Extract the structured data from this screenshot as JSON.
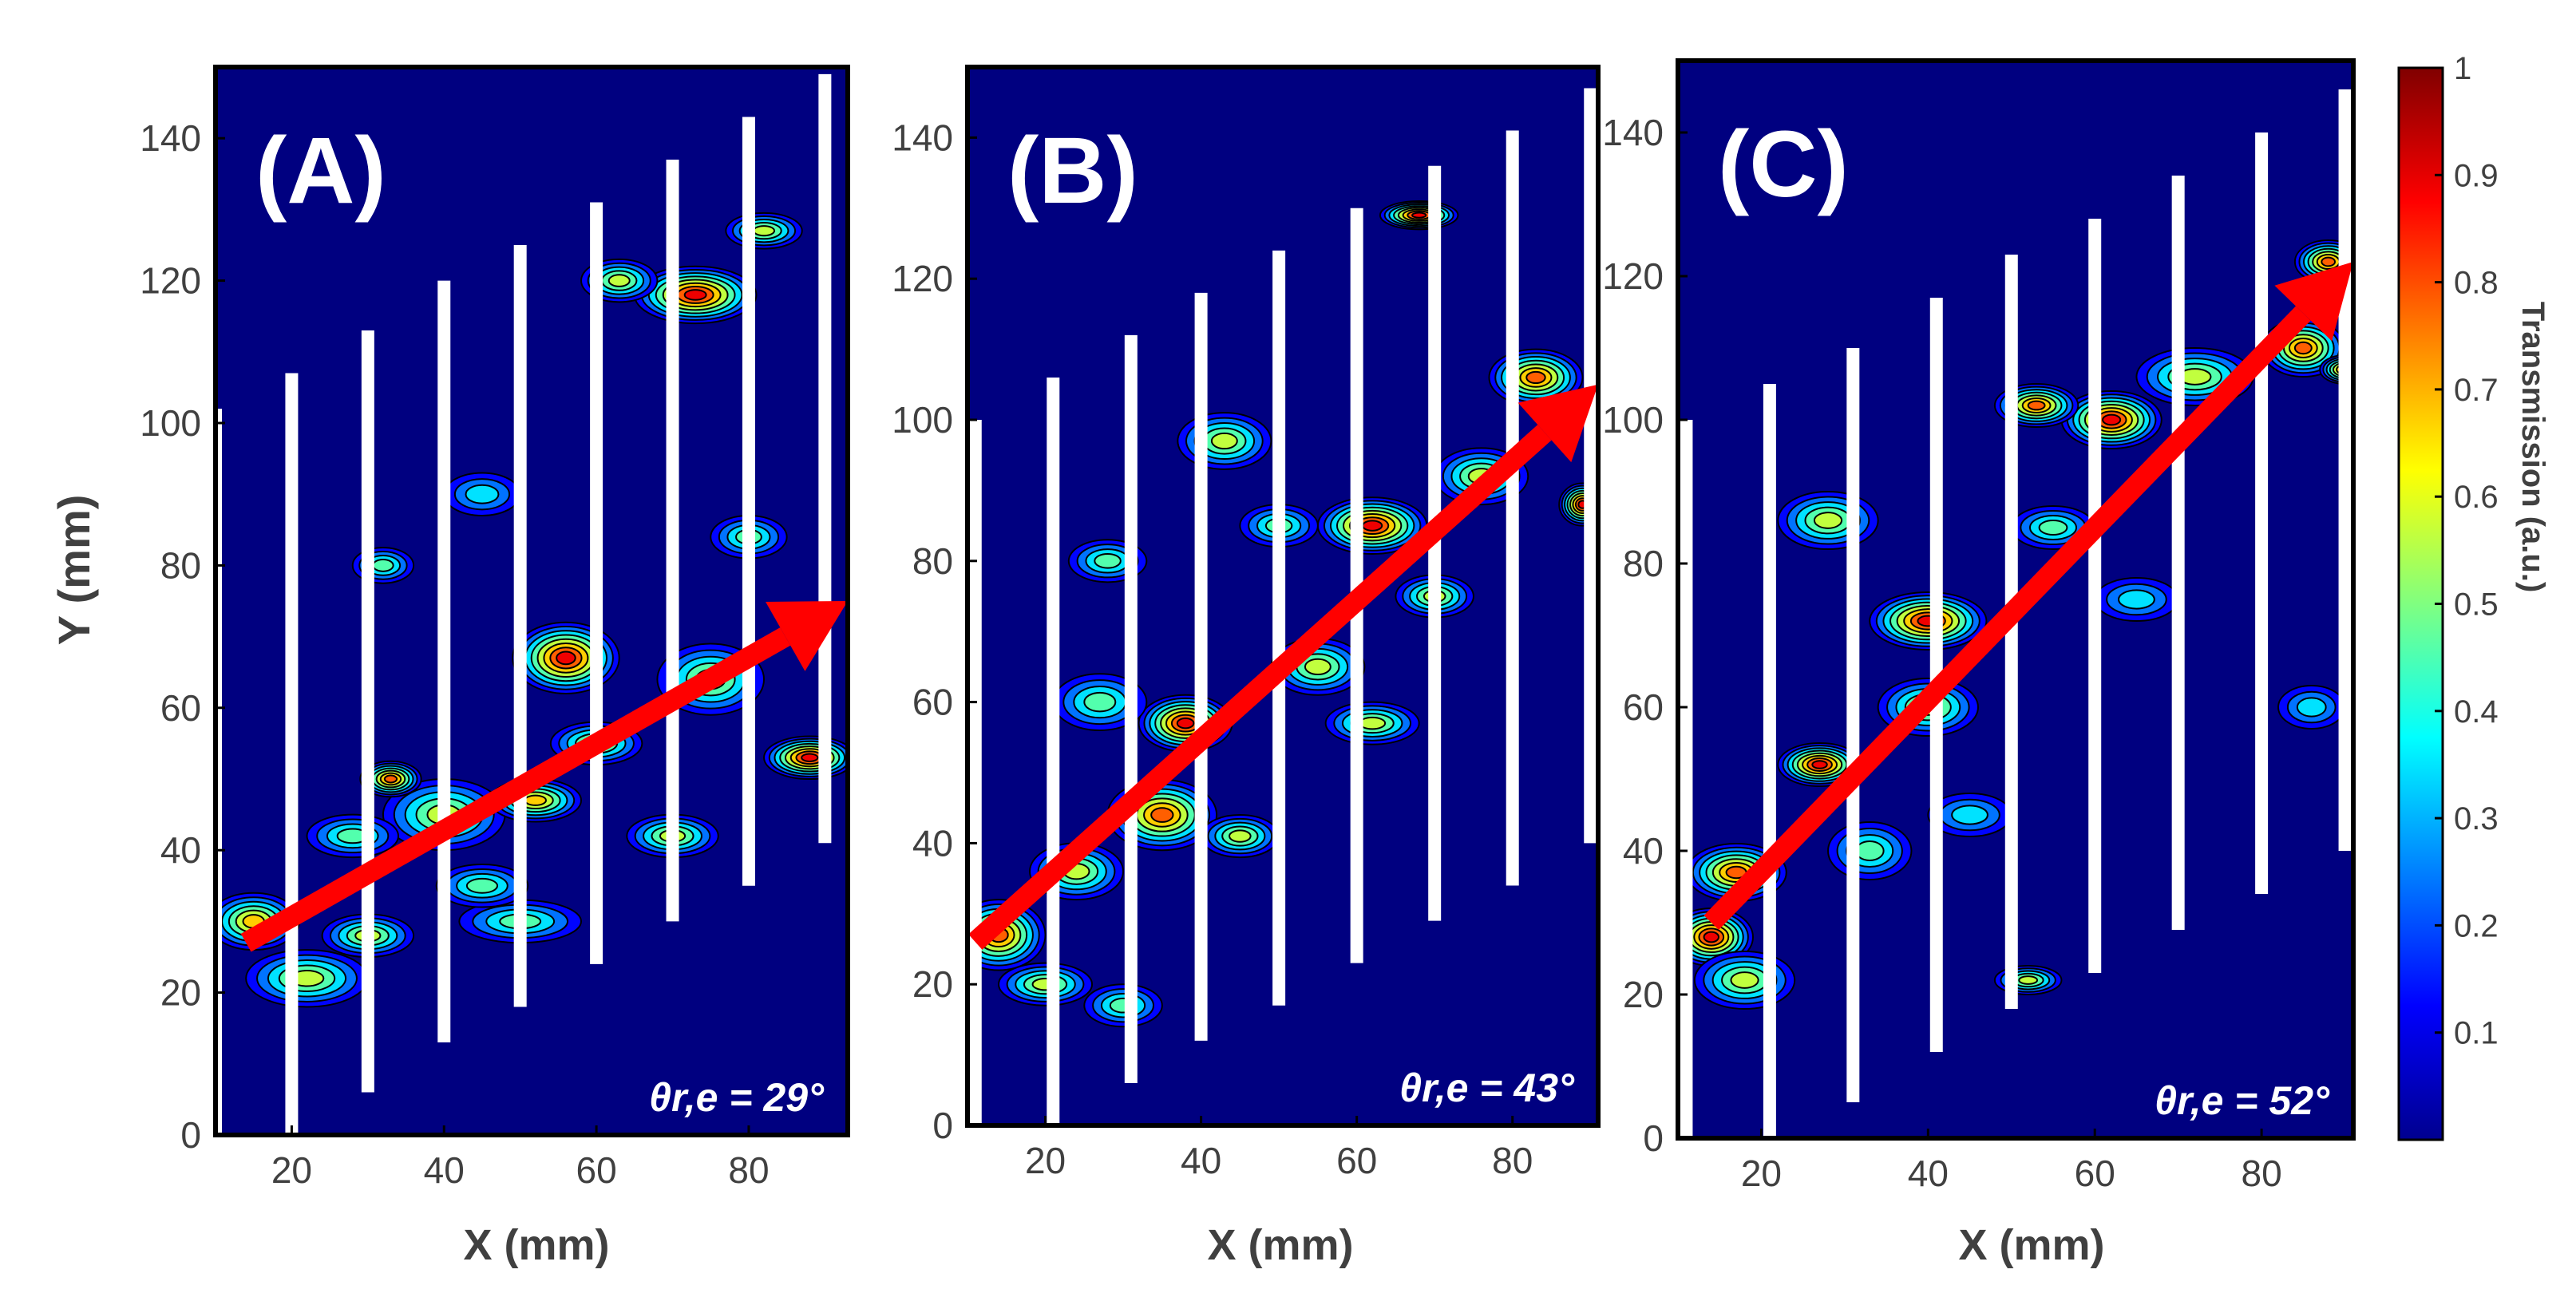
{
  "figure": {
    "y_axis_label": "Y (mm)",
    "colorbar": {
      "label": "Transmission (a.u.)",
      "ticks": [
        1,
        0.9,
        0.8,
        0.7,
        0.6,
        0.5,
        0.4,
        0.3,
        0.2,
        0.1
      ],
      "colors": [
        "#00008f",
        "#0000ff",
        "#0080ff",
        "#00ffff",
        "#80ff80",
        "#ffff00",
        "#ff8000",
        "#ff0000",
        "#800000"
      ]
    },
    "colors": {
      "background": "#000080",
      "arrow": "#ff0000",
      "rods": "#ffffff",
      "frame": "#000000"
    }
  },
  "chart_data": [
    {
      "type": "contour",
      "panel": "(A)",
      "angle_label": "θr,e = 29°",
      "angle_deg": 29,
      "xlabel": "X (mm)",
      "ylabel": "Y (mm)",
      "xlim": [
        10,
        93
      ],
      "ylim": [
        0,
        150
      ],
      "xticks": [
        20,
        40,
        60,
        80
      ],
      "yticks": [
        0,
        20,
        40,
        60,
        80,
        100,
        120,
        140
      ],
      "rods": [
        {
          "x": 10,
          "y0": 0,
          "y1": 102
        },
        {
          "x": 20,
          "y0": 0,
          "y1": 107
        },
        {
          "x": 30,
          "y0": 6,
          "y1": 113
        },
        {
          "x": 40,
          "y0": 13,
          "y1": 120
        },
        {
          "x": 50,
          "y0": 18,
          "y1": 125
        },
        {
          "x": 60,
          "y0": 24,
          "y1": 131
        },
        {
          "x": 70,
          "y0": 30,
          "y1": 137
        },
        {
          "x": 80,
          "y0": 35,
          "y1": 143
        },
        {
          "x": 90,
          "y0": 41,
          "y1": 149
        }
      ],
      "arrow": {
        "from": [
          14,
          27
        ],
        "to": [
          93,
          75
        ]
      },
      "hotspots": [
        {
          "x": 15,
          "y": 30,
          "w": 6,
          "h": 4,
          "v": 0.7
        },
        {
          "x": 22,
          "y": 22,
          "w": 8,
          "h": 4,
          "v": 0.5
        },
        {
          "x": 30,
          "y": 28,
          "w": 6,
          "h": 3,
          "v": 0.6
        },
        {
          "x": 40,
          "y": 45,
          "w": 8,
          "h": 5,
          "v": 0.55
        },
        {
          "x": 33,
          "y": 50,
          "w": 4,
          "h": 2.5,
          "v": 0.8
        },
        {
          "x": 52,
          "y": 47,
          "w": 6,
          "h": 3,
          "v": 0.7
        },
        {
          "x": 56,
          "y": 67,
          "w": 7,
          "h": 5,
          "v": 0.9
        },
        {
          "x": 60,
          "y": 55,
          "w": 6,
          "h": 3,
          "v": 0.6
        },
        {
          "x": 75,
          "y": 64,
          "w": 7,
          "h": 5,
          "v": 0.6
        },
        {
          "x": 88,
          "y": 53,
          "w": 6,
          "h": 3,
          "v": 0.9
        },
        {
          "x": 73,
          "y": 118,
          "w": 8,
          "h": 4,
          "v": 0.85
        },
        {
          "x": 63,
          "y": 120,
          "w": 5,
          "h": 3,
          "v": 0.6
        },
        {
          "x": 82,
          "y": 127,
          "w": 5,
          "h": 2.5,
          "v": 0.6
        },
        {
          "x": 50,
          "y": 30,
          "w": 8,
          "h": 3,
          "v": 0.45
        },
        {
          "x": 28,
          "y": 42,
          "w": 6,
          "h": 3,
          "v": 0.45
        },
        {
          "x": 32,
          "y": 80,
          "w": 4,
          "h": 2.5,
          "v": 0.45
        },
        {
          "x": 45,
          "y": 90,
          "w": 5,
          "h": 3,
          "v": 0.35
        },
        {
          "x": 80,
          "y": 84,
          "w": 5,
          "h": 3,
          "v": 0.4
        },
        {
          "x": 70,
          "y": 42,
          "w": 6,
          "h": 3,
          "v": 0.5
        },
        {
          "x": 45,
          "y": 35,
          "w": 6,
          "h": 3,
          "v": 0.45
        }
      ]
    },
    {
      "type": "contour",
      "panel": "(B)",
      "angle_label": "θr,e = 43°",
      "angle_deg": 43,
      "xlabel": "X (mm)",
      "ylabel": "Y (mm)",
      "xlim": [
        10,
        91
      ],
      "ylim": [
        0,
        150
      ],
      "xticks": [
        20,
        40,
        60,
        80
      ],
      "yticks": [
        0,
        20,
        40,
        60,
        80,
        100,
        120,
        140
      ],
      "rods": [
        {
          "x": 11,
          "y0": 0,
          "y1": 100
        },
        {
          "x": 21,
          "y0": 0,
          "y1": 106
        },
        {
          "x": 31,
          "y0": 6,
          "y1": 112
        },
        {
          "x": 40,
          "y0": 12,
          "y1": 118
        },
        {
          "x": 50,
          "y0": 17,
          "y1": 124
        },
        {
          "x": 60,
          "y0": 23,
          "y1": 130
        },
        {
          "x": 70,
          "y0": 29,
          "y1": 136
        },
        {
          "x": 80,
          "y0": 34,
          "y1": 141
        },
        {
          "x": 90,
          "y0": 40,
          "y1": 147
        }
      ],
      "arrow": {
        "from": [
          11,
          26
        ],
        "to": [
          91,
          105
        ]
      },
      "hotspots": [
        {
          "x": 14,
          "y": 27,
          "w": 6,
          "h": 5,
          "v": 0.75
        },
        {
          "x": 24,
          "y": 36,
          "w": 6,
          "h": 4,
          "v": 0.6
        },
        {
          "x": 20,
          "y": 20,
          "w": 6,
          "h": 3,
          "v": 0.55
        },
        {
          "x": 35,
          "y": 44,
          "w": 7,
          "h": 5,
          "v": 0.75
        },
        {
          "x": 38,
          "y": 57,
          "w": 6,
          "h": 4,
          "v": 0.85
        },
        {
          "x": 45,
          "y": 41,
          "w": 5,
          "h": 3,
          "v": 0.6
        },
        {
          "x": 55,
          "y": 65,
          "w": 6,
          "h": 4,
          "v": 0.5
        },
        {
          "x": 62,
          "y": 85,
          "w": 7,
          "h": 4,
          "v": 0.85
        },
        {
          "x": 76,
          "y": 92,
          "w": 6,
          "h": 4,
          "v": 0.6
        },
        {
          "x": 83,
          "y": 106,
          "w": 6,
          "h": 4,
          "v": 0.75
        },
        {
          "x": 89,
          "y": 88,
          "w": 3,
          "h": 3,
          "v": 0.85
        },
        {
          "x": 70,
          "y": 75,
          "w": 5,
          "h": 3,
          "v": 0.5
        },
        {
          "x": 27,
          "y": 60,
          "w": 6,
          "h": 4,
          "v": 0.45
        },
        {
          "x": 28,
          "y": 80,
          "w": 5,
          "h": 3,
          "v": 0.45
        },
        {
          "x": 43,
          "y": 97,
          "w": 6,
          "h": 4,
          "v": 0.5
        },
        {
          "x": 68,
          "y": 129,
          "w": 5,
          "h": 2,
          "v": 0.85
        },
        {
          "x": 30,
          "y": 17,
          "w": 5,
          "h": 3,
          "v": 0.45
        },
        {
          "x": 62,
          "y": 57,
          "w": 6,
          "h": 3,
          "v": 0.5
        },
        {
          "x": 50,
          "y": 85,
          "w": 5,
          "h": 3,
          "v": 0.45
        }
      ]
    },
    {
      "type": "contour",
      "panel": "(C)",
      "angle_label": "θr,e = 52°",
      "angle_deg": 52,
      "xlabel": "X (mm)",
      "ylabel": "Y (mm)",
      "xlim": [
        10,
        91
      ],
      "ylim": [
        0,
        150
      ],
      "xticks": [
        20,
        40,
        60,
        80
      ],
      "yticks": [
        0,
        20,
        40,
        60,
        80,
        100,
        120,
        140
      ],
      "rods": [
        {
          "x": 11,
          "y0": 0,
          "y1": 100
        },
        {
          "x": 21,
          "y0": 0,
          "y1": 105
        },
        {
          "x": 31,
          "y0": 5,
          "y1": 110
        },
        {
          "x": 41,
          "y0": 12,
          "y1": 117
        },
        {
          "x": 50,
          "y0": 18,
          "y1": 123
        },
        {
          "x": 60,
          "y0": 23,
          "y1": 128
        },
        {
          "x": 70,
          "y0": 29,
          "y1": 134
        },
        {
          "x": 80,
          "y0": 34,
          "y1": 140
        },
        {
          "x": 90,
          "y0": 40,
          "y1": 146
        }
      ],
      "arrow": {
        "from": [
          14,
          30
        ],
        "to": [
          91,
          122
        ]
      },
      "hotspots": [
        {
          "x": 14,
          "y": 28,
          "w": 5,
          "h": 4,
          "v": 0.85
        },
        {
          "x": 17,
          "y": 37,
          "w": 6,
          "h": 4,
          "v": 0.75
        },
        {
          "x": 27,
          "y": 52,
          "w": 5,
          "h": 3,
          "v": 0.85
        },
        {
          "x": 40,
          "y": 60,
          "w": 6,
          "h": 4,
          "v": 0.6
        },
        {
          "x": 40,
          "y": 72,
          "w": 7,
          "h": 4,
          "v": 0.85
        },
        {
          "x": 62,
          "y": 100,
          "w": 6,
          "h": 4,
          "v": 0.85
        },
        {
          "x": 53,
          "y": 102,
          "w": 5,
          "h": 3,
          "v": 0.8
        },
        {
          "x": 72,
          "y": 106,
          "w": 7,
          "h": 4,
          "v": 0.5
        },
        {
          "x": 85,
          "y": 110,
          "w": 5,
          "h": 4,
          "v": 0.75
        },
        {
          "x": 88,
          "y": 122,
          "w": 4,
          "h": 3,
          "v": 0.75
        },
        {
          "x": 90,
          "y": 107,
          "w": 3,
          "h": 2,
          "v": 0.8
        },
        {
          "x": 28,
          "y": 86,
          "w": 6,
          "h": 4,
          "v": 0.5
        },
        {
          "x": 18,
          "y": 22,
          "w": 6,
          "h": 4,
          "v": 0.55
        },
        {
          "x": 55,
          "y": 85,
          "w": 5,
          "h": 3,
          "v": 0.45
        },
        {
          "x": 33,
          "y": 40,
          "w": 5,
          "h": 4,
          "v": 0.45
        },
        {
          "x": 65,
          "y": 75,
          "w": 5,
          "h": 3,
          "v": 0.35
        },
        {
          "x": 52,
          "y": 22,
          "w": 4,
          "h": 2,
          "v": 0.5
        },
        {
          "x": 86,
          "y": 60,
          "w": 4,
          "h": 3,
          "v": 0.35
        },
        {
          "x": 45,
          "y": 45,
          "w": 5,
          "h": 3,
          "v": 0.35
        }
      ]
    }
  ]
}
